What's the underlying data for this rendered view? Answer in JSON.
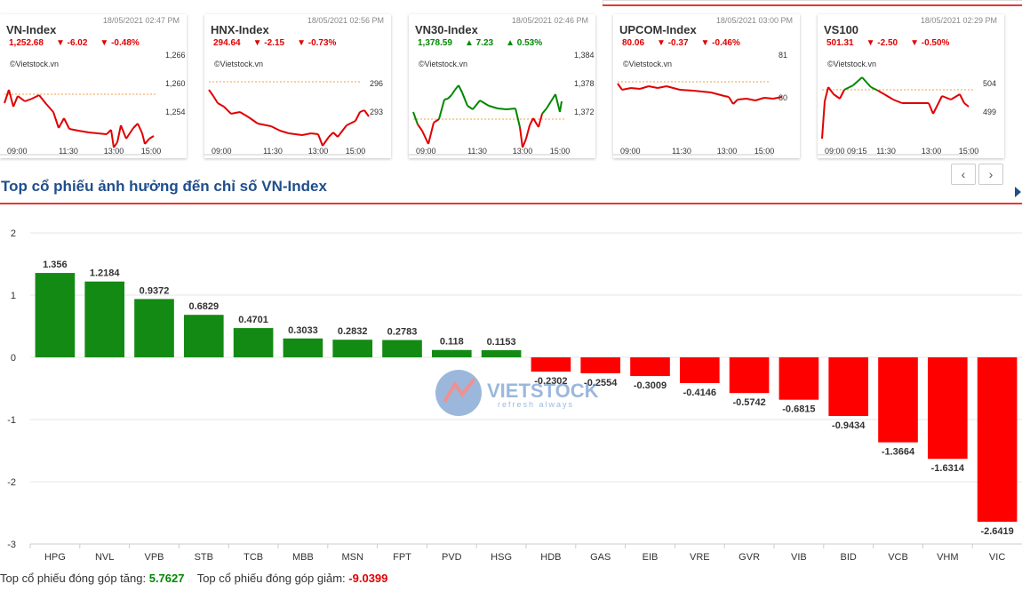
{
  "cards": [
    {
      "name": "VN-Index",
      "time": "18/05/2021 02:47 PM",
      "value": "1,252.68",
      "change": "-6.02",
      "pct": "-0.48%",
      "dir": "down",
      "arrow": "▼",
      "source": "©Vietstock.vn",
      "yticks": [
        "1,266",
        "1,260",
        "1,254"
      ],
      "xticks": [
        "09:00",
        "11:30",
        "13:00",
        "15:00"
      ]
    },
    {
      "name": "HNX-Index",
      "time": "18/05/2021 02:56 PM",
      "value": "294.64",
      "change": "-2.15",
      "pct": "-0.73%",
      "dir": "down",
      "arrow": "▼",
      "source": "©Vietstock.vn",
      "yticks": [
        "296",
        "293"
      ],
      "xticks": [
        "09:00",
        "11:30",
        "13:00",
        "15:00"
      ]
    },
    {
      "name": "VN30-Index",
      "time": "18/05/2021 02:46 PM",
      "value": "1,378.59",
      "change": "7.23",
      "pct": "0.53%",
      "dir": "up",
      "arrow": "▲",
      "source": "©Vietstock.vn",
      "yticks": [
        "1,384",
        "1,378",
        "1,372"
      ],
      "xticks": [
        "09:00",
        "11:30",
        "13:00",
        "15:00"
      ]
    },
    {
      "name": "UPCOM-Index",
      "time": "18/05/2021 03:00 PM",
      "value": "80.06",
      "change": "-0.37",
      "pct": "-0.46%",
      "dir": "down",
      "arrow": "▼",
      "source": "©Vietstock.vn",
      "yticks": [
        "81",
        "80"
      ],
      "xticks": [
        "09:00",
        "11:30",
        "13:00",
        "15:00"
      ]
    },
    {
      "name": "VS100",
      "time": "18/05/2021 02:29 PM",
      "value": "501.31",
      "change": "-2.50",
      "pct": "-0.50%",
      "dir": "down",
      "arrow": "▼",
      "source": "©Vietstock.vn",
      "yticks": [
        "504",
        "499"
      ],
      "xticks": [
        "09:00 09:15",
        "11:30",
        "13:00",
        "15:00"
      ]
    }
  ],
  "nav": {
    "prev": "‹",
    "next": "›"
  },
  "section_title": "Top cổ phiếu ảnh hưởng đến chỉ số VN-Index",
  "watermark": {
    "brand": "VIETSTOCK",
    "tagline": "refresh always"
  },
  "colors": {
    "positive": "#138a13",
    "negative": "#ff0000",
    "title": "#1f4e8c",
    "accent": "#e53935"
  },
  "chart_data": {
    "type": "bar",
    "categories": [
      "HPG",
      "NVL",
      "VPB",
      "STB",
      "TCB",
      "MBB",
      "MSN",
      "FPT",
      "PVD",
      "HSG",
      "HDB",
      "GAS",
      "EIB",
      "VRE",
      "GVR",
      "VIB",
      "BID",
      "VCB",
      "VHM",
      "VIC"
    ],
    "values": [
      1.356,
      1.2184,
      0.9372,
      0.6829,
      0.4701,
      0.3033,
      0.2832,
      0.2783,
      0.118,
      0.1153,
      -0.2302,
      -0.2554,
      -0.3009,
      -0.4146,
      -0.5742,
      -0.6815,
      -0.9434,
      -1.3664,
      -1.6314,
      -2.6419
    ],
    "value_labels": [
      "1.356",
      "1.2184",
      "0.9372",
      "0.6829",
      "0.4701",
      "0.3033",
      "0.2832",
      "0.2783",
      "0.118",
      "0.1153",
      "-0.2302",
      "-0.2554",
      "-0.3009",
      "-0.4146",
      "-0.5742",
      "-0.6815",
      "-0.9434",
      "-1.3664",
      "-1.6314",
      "-2.6419"
    ],
    "yticks": [
      "2",
      "1",
      "0",
      "-1",
      "-2",
      "-3"
    ],
    "ylim": [
      -3,
      2
    ],
    "grid": true,
    "title": "",
    "xlabel": "",
    "ylabel": ""
  },
  "footer": {
    "up_label": "Top cổ phiếu đóng góp tăng:",
    "up_value": "5.7627",
    "down_label": "Top cổ phiếu đóng góp giảm:",
    "down_value": "-9.0399"
  }
}
